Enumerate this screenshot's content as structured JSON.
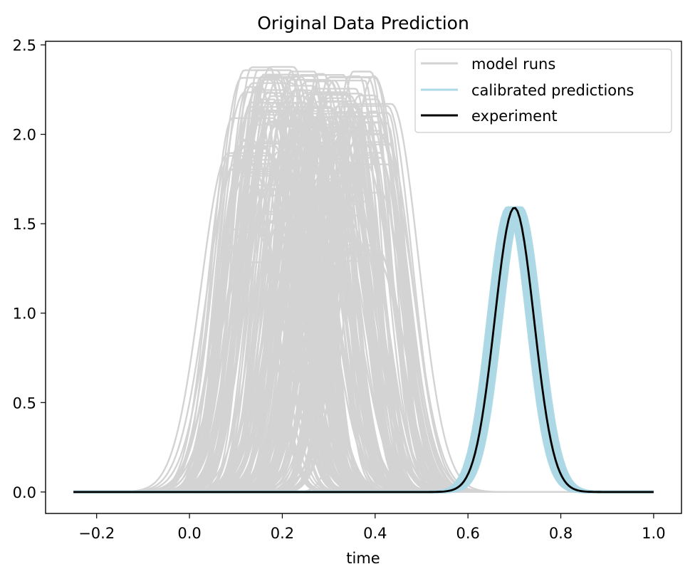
{
  "chart_data": {
    "type": "line",
    "title": "Original Data Prediction",
    "xlabel": "time",
    "ylabel": "",
    "xlim": [
      -0.31,
      1.06
    ],
    "ylim": [
      -0.12,
      2.52
    ],
    "xticks": [
      -0.2,
      0.0,
      0.2,
      0.4,
      0.6,
      0.8,
      1.0
    ],
    "xtick_labels": [
      "−0.2",
      "0.0",
      "0.2",
      "0.4",
      "0.6",
      "0.8",
      "1.0"
    ],
    "yticks": [
      0.0,
      0.5,
      1.0,
      1.5,
      2.0,
      2.5
    ],
    "ytick_labels": [
      "0.0",
      "0.5",
      "1.0",
      "1.5",
      "2.0",
      "2.5"
    ],
    "grid": false,
    "legend_position": "top-right",
    "x_range": [
      -0.25,
      1.0
    ],
    "series": [
      {
        "name": "model runs",
        "color": "#d3d3d3",
        "description_shape": "ensemble of flat-topped pulses",
        "count": 200,
        "center_range": [
          0.12,
          0.4
        ],
        "width_range": [
          0.05,
          0.09
        ],
        "peak_range": [
          1.2,
          2.38
        ]
      },
      {
        "name": "calibrated predictions",
        "color": "#add8e6",
        "count": 40,
        "center_range": [
          0.685,
          0.715
        ],
        "width": 0.06,
        "peak": 1.59
      },
      {
        "name": "experiment",
        "color": "#000000",
        "center": 0.7,
        "width": 0.06,
        "peak": 1.59
      }
    ]
  }
}
